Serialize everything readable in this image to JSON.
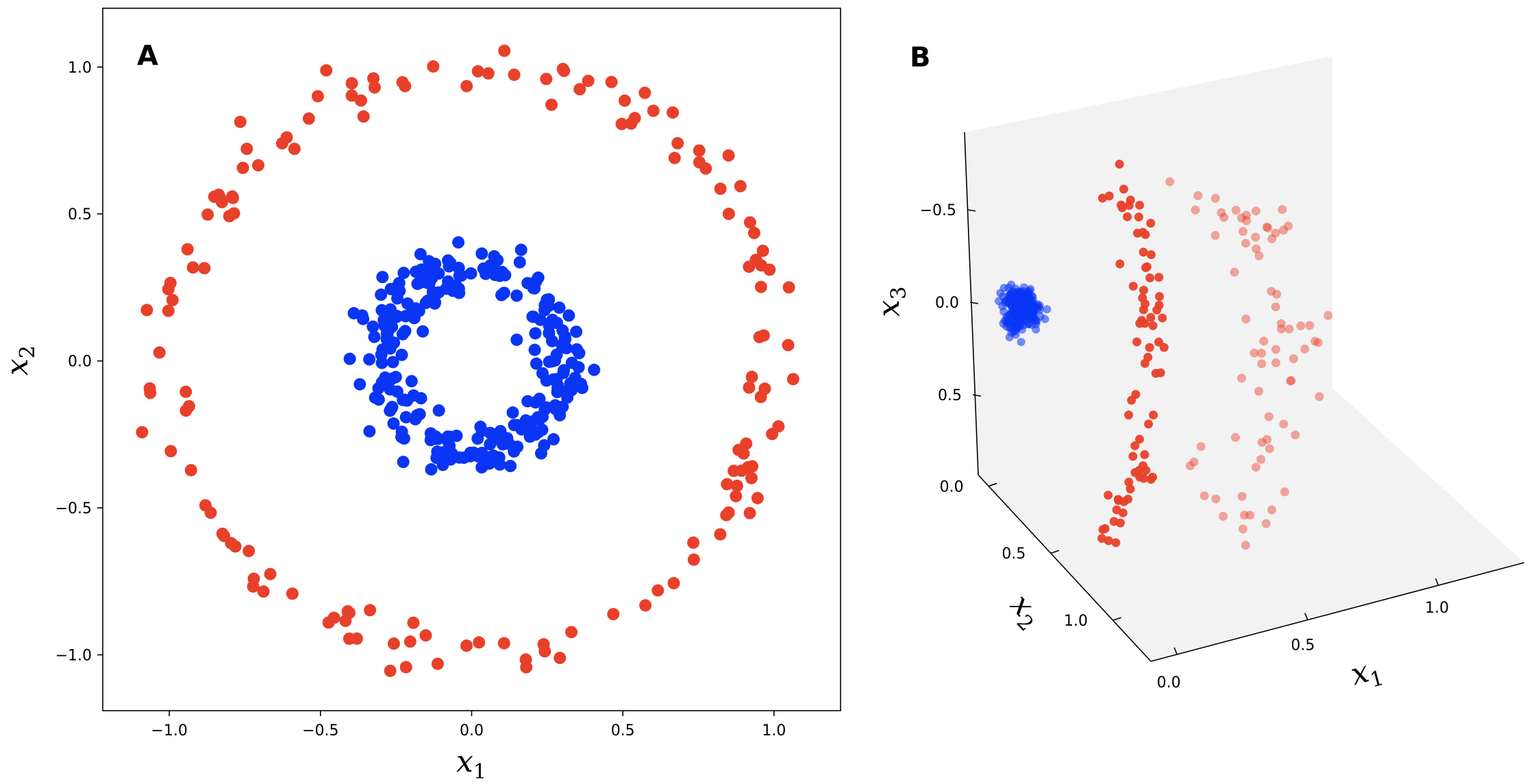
{
  "colors": {
    "outer": "#e8402a",
    "inner": "#0a35f5",
    "pane": "#f2f2f2",
    "axis": "#000000"
  },
  "chart_data": [
    {
      "panel": "A",
      "type": "scatter",
      "xlim": [
        -1.22,
        1.22
      ],
      "ylim": [
        -1.19,
        1.2
      ],
      "xticks": [
        -1.0,
        -0.5,
        0.0,
        0.5,
        1.0
      ],
      "xtick_labels": [
        "−1.0",
        "−0.5",
        "0.0",
        "0.5",
        "1.0"
      ],
      "yticks": [
        -1.0,
        -0.5,
        0.0,
        0.5,
        1.0
      ],
      "ytick_labels": [
        "−1.0",
        "−0.5",
        "0.0",
        "0.5",
        "1.0"
      ],
      "xlabel_var": "x",
      "xlabel_sub": "1",
      "ylabel_var": "x",
      "ylabel_sub": "2",
      "grid": false,
      "series": [
        {
          "color": "#e8402a",
          "shape": "ring",
          "radius": 1.0,
          "noise": 0.05,
          "n": 150,
          "points_sample": [
            [
              1.0,
              0.0
            ],
            [
              0.71,
              0.71
            ],
            [
              0.0,
              1.0
            ],
            [
              -0.71,
              0.71
            ],
            [
              -1.0,
              0.0
            ],
            [
              -0.71,
              -0.71
            ],
            [
              0.0,
              -1.0
            ],
            [
              0.71,
              -0.71
            ]
          ]
        },
        {
          "color": "#0a35f5",
          "shape": "ring",
          "radius": 0.3,
          "noise": 0.045,
          "n": 270,
          "points_sample": [
            [
              0.3,
              0.0
            ],
            [
              0.21,
              0.21
            ],
            [
              0.0,
              0.3
            ],
            [
              -0.21,
              0.21
            ],
            [
              -0.3,
              0.0
            ],
            [
              -0.21,
              -0.21
            ],
            [
              0.0,
              -0.3
            ],
            [
              0.21,
              -0.21
            ]
          ]
        }
      ]
    },
    {
      "panel": "B",
      "type": "scatter3d",
      "note_axes": [
        "x1",
        "x2",
        "x3"
      ],
      "x1_ticks": [
        0.0,
        0.5,
        1.0
      ],
      "x1_tick_labels": [
        "0.0",
        "0.5",
        "1.0"
      ],
      "x2_ticks": [
        0.0,
        0.5,
        1.0
      ],
      "x2_tick_labels": [
        "0.0",
        "0.5",
        "1.0"
      ],
      "x3_ticks": [
        -0.5,
        0.0,
        0.5
      ],
      "x3_tick_labels": [
        "−0.5",
        "0.0",
        "0.5"
      ],
      "x1_label_var": "x",
      "x1_label_sub": "1",
      "x2_label_var": "x",
      "x2_label_sub": "2",
      "x3_label_var": "x",
      "x3_label_sub": "3",
      "series": [
        {
          "color": "#e8402a",
          "shape": "half-ring on x1-x3 plane",
          "n": 150
        },
        {
          "color": "#0a35f5",
          "shape": "tight cluster near x1=0,x3=0",
          "n": 270
        }
      ]
    }
  ]
}
